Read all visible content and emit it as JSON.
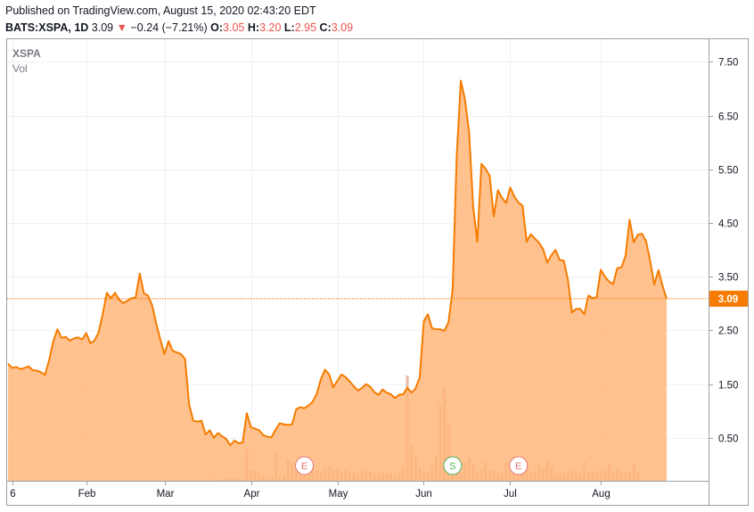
{
  "header": {
    "published_line": "Published on TradingView.com, August 15, 2020 02:43:20 EDT",
    "symbol": "BATS:XSPA, 1D",
    "last": "3.09",
    "down_arrow": "▼",
    "change": "−0.24 (−7.21%)",
    "o_label": "O:",
    "o_value": "3.05",
    "h_label": "H:",
    "h_value": "3.20",
    "l_label": "L:",
    "l_value": "2.95",
    "c_label": "C:",
    "c_value": "3.09"
  },
  "pane": {
    "ticker_label": "XSPA",
    "vol_label": "Vol",
    "last_price_tag": "3.09"
  },
  "colors": {
    "line": "#f57c00",
    "area_fill": "#ffb67a",
    "last_tag": "#f57c00",
    "volume": "#e8b39a",
    "down_text": "#ef5350",
    "earnings_marker": "#e57373",
    "split_marker": "#4caf50"
  },
  "chart_data": {
    "type": "area",
    "title": "XSPA",
    "xlabel": "",
    "ylabel": "",
    "y_ticks": [
      "0.50",
      "1.50",
      "2.50",
      "3.50",
      "4.50",
      "5.50",
      "6.50",
      "7.50"
    ],
    "x_ticks": [
      {
        "label": "6",
        "index": 1
      },
      {
        "label": "Feb",
        "index": 19
      },
      {
        "label": "Mar",
        "index": 38
      },
      {
        "label": "Apr",
        "index": 59
      },
      {
        "label": "May",
        "index": 80
      },
      {
        "label": "Jun",
        "index": 101
      },
      {
        "label": "Jul",
        "index": 122
      },
      {
        "label": "Aug",
        "index": 144
      }
    ],
    "ylim": [
      -0.3,
      7.92
    ],
    "last_value": 3.09,
    "events": [
      {
        "label": "E",
        "index": 72,
        "kind": "earnings"
      },
      {
        "label": "S",
        "index": 108,
        "kind": "split"
      },
      {
        "label": "E",
        "index": 124,
        "kind": "earnings"
      }
    ],
    "series": [
      {
        "values": [
          1.88,
          1.8,
          1.82,
          1.78,
          1.8,
          1.83,
          1.76,
          1.75,
          1.72,
          1.67,
          1.95,
          2.3,
          2.52,
          2.36,
          2.38,
          2.31,
          2.35,
          2.37,
          2.33,
          2.45,
          2.26,
          2.31,
          2.46,
          2.8,
          3.2,
          3.1,
          3.2,
          3.07,
          3.01,
          3.05,
          3.1,
          3.11,
          3.56,
          3.19,
          3.15,
          2.97,
          2.63,
          2.33,
          2.06,
          2.3,
          2.12,
          2.09,
          2.06,
          1.97,
          1.12,
          0.82,
          0.8,
          0.82,
          0.56,
          0.64,
          0.5,
          0.59,
          0.53,
          0.48,
          0.36,
          0.45,
          0.4,
          0.41,
          0.96,
          0.7,
          0.67,
          0.64,
          0.55,
          0.52,
          0.51,
          0.65,
          0.77,
          0.75,
          0.74,
          0.75,
          1.03,
          1.07,
          1.05,
          1.1,
          1.17,
          1.32,
          1.59,
          1.77,
          1.68,
          1.44,
          1.56,
          1.68,
          1.63,
          1.55,
          1.46,
          1.38,
          1.43,
          1.5,
          1.45,
          1.35,
          1.3,
          1.4,
          1.34,
          1.31,
          1.24,
          1.3,
          1.31,
          1.43,
          1.34,
          1.42,
          1.62,
          2.67,
          2.8,
          2.54,
          2.52,
          2.52,
          2.49,
          2.65,
          3.25,
          5.75,
          7.15,
          6.8,
          6.2,
          4.8,
          4.15,
          5.6,
          5.51,
          5.38,
          4.62,
          5.11,
          4.97,
          4.87,
          5.16,
          4.99,
          4.88,
          4.82,
          4.15,
          4.29,
          4.21,
          4.13,
          4.01,
          3.76,
          3.9,
          4.0,
          3.81,
          3.8,
          3.45,
          2.83,
          2.9,
          2.9,
          2.8,
          3.15,
          3.1,
          3.12,
          3.63,
          3.5,
          3.41,
          3.36,
          3.66,
          3.67,
          3.88,
          4.56,
          4.14,
          4.28,
          4.3,
          4.16,
          3.79,
          3.35,
          3.62,
          3.33,
          3.09
        ]
      }
    ],
    "volume": [
      0,
      0,
      0,
      0,
      0,
      0,
      0,
      0,
      0,
      0,
      0,
      0,
      0,
      0,
      0,
      0,
      0,
      0,
      0,
      0,
      0,
      0,
      0,
      0,
      0,
      0,
      0,
      0,
      0,
      0,
      0,
      0,
      0,
      0,
      0,
      0,
      0,
      0,
      0,
      0,
      0,
      0,
      0,
      0,
      0,
      0,
      0,
      0,
      0,
      0,
      0.3,
      0.2,
      0.2,
      0.3,
      0.5,
      0.3,
      0.3,
      0.3,
      4.8,
      1.5,
      1.6,
      1.2,
      0.8,
      0.5,
      0.6,
      4.5,
      0.9,
      0.8,
      3.2,
      2.8,
      2.0,
      2.1,
      1.5,
      2.7,
      2.4,
      1.6,
      1.4,
      1.9,
      2.2,
      1.8,
      1.9,
      1.4,
      1.6,
      1.2,
      1.3,
      1.0,
      1.6,
      1.1,
      1.4,
      1.1,
      1.0,
      1.3,
      1.0,
      1.2,
      0.8,
      1.2,
      2.3,
      16.0,
      5.6,
      3.5,
      2.2,
      1.4,
      1.3,
      2.2,
      3.8,
      11.6,
      14.3,
      8.6,
      3.5,
      2.2,
      1.3,
      2.8,
      3.5,
      2.7,
      1.2,
      1.7,
      2.8,
      1.5,
      1.6,
      1.3,
      1.1,
      2.8,
      1.3,
      1.1,
      1.5,
      1.1,
      2.3,
      1.2,
      1.5,
      2.4,
      2.0,
      3.1,
      2.2,
      1.0,
      1.2,
      1.2,
      1.1,
      1.5,
      1.6,
      1.1,
      2.9,
      1.3,
      1.6,
      1.3,
      1.2,
      1.6,
      2.6,
      1.2,
      1.8,
      1.3,
      1.2,
      1.4,
      2.6,
      1.2
    ]
  }
}
